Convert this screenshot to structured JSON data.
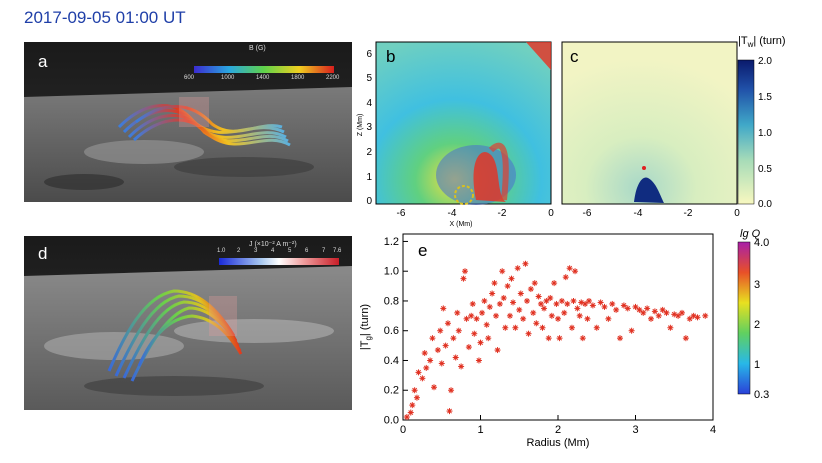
{
  "header": {
    "title": "2017-09-05 01:00 UT"
  },
  "panel_a": {
    "label": "a",
    "colorbar": {
      "title": "B (G)",
      "ticks": [
        "600",
        "1000",
        "1400",
        "1800",
        "2200"
      ]
    }
  },
  "panel_b": {
    "label": "b"
  },
  "panel_c": {
    "label": "c"
  },
  "panel_d": {
    "label": "d",
    "colorbar": {
      "title": "J (×10⁻² A m⁻²)",
      "ticks": [
        "1.0",
        "2",
        "3",
        "4",
        "5",
        "6",
        "7",
        "7.6"
      ]
    }
  },
  "panel_e": {
    "label": "e"
  },
  "colorbar_tw": {
    "title_sym": "|T",
    "title_sub": "w",
    "title_end": "| (turn)",
    "ticks": [
      "2.0",
      "1.5",
      "1.0",
      "0.5",
      "0.0"
    ]
  },
  "colorbar_q": {
    "title": "lg Q",
    "ticks": [
      "4.0",
      "3",
      "2",
      "1",
      "0.3"
    ]
  },
  "map_axes": {
    "b_xticks": [
      "-6",
      "-4",
      "-2",
      "0"
    ],
    "c_xticks": [
      "-6",
      "-4",
      "-2",
      "0"
    ],
    "yticks": [
      "6",
      "5",
      "4",
      "3",
      "2",
      "1",
      "0"
    ],
    "xlabel": "X (Mm)",
    "ylabel": "Z (Mm)"
  },
  "chart_data": {
    "type": "scatter",
    "xlabel": "Radius (Mm)",
    "ylabel_sym": "|T",
    "ylabel_sub": "g",
    "ylabel_end": "| (turn)",
    "xlim": [
      0,
      4
    ],
    "ylim": [
      0,
      1.25
    ],
    "xticks": [
      "0",
      "1",
      "2",
      "3",
      "4"
    ],
    "yticks": [
      "0.0",
      "0.2",
      "0.4",
      "0.6",
      "0.8",
      "1.0",
      "1.2"
    ],
    "marker": "asterisk",
    "color": "#e03020",
    "points": [
      [
        0.05,
        0.02
      ],
      [
        0.1,
        0.05
      ],
      [
        0.12,
        0.1
      ],
      [
        0.15,
        0.2
      ],
      [
        0.18,
        0.15
      ],
      [
        0.2,
        0.32
      ],
      [
        0.25,
        0.28
      ],
      [
        0.28,
        0.45
      ],
      [
        0.3,
        0.35
      ],
      [
        0.35,
        0.4
      ],
      [
        0.38,
        0.55
      ],
      [
        0.4,
        0.22
      ],
      [
        0.45,
        0.47
      ],
      [
        0.48,
        0.6
      ],
      [
        0.5,
        0.38
      ],
      [
        0.52,
        0.75
      ],
      [
        0.55,
        0.5
      ],
      [
        0.58,
        0.65
      ],
      [
        0.6,
        0.06
      ],
      [
        0.62,
        0.2
      ],
      [
        0.65,
        0.55
      ],
      [
        0.68,
        0.42
      ],
      [
        0.7,
        0.72
      ],
      [
        0.72,
        0.6
      ],
      [
        0.75,
        0.36
      ],
      [
        0.78,
        0.95
      ],
      [
        0.8,
        1.0
      ],
      [
        0.82,
        0.68
      ],
      [
        0.85,
        0.49
      ],
      [
        0.88,
        0.7
      ],
      [
        0.9,
        0.78
      ],
      [
        0.92,
        0.58
      ],
      [
        0.95,
        0.68
      ],
      [
        0.98,
        0.4
      ],
      [
        1.0,
        0.52
      ],
      [
        1.02,
        0.72
      ],
      [
        1.05,
        0.8
      ],
      [
        1.08,
        0.64
      ],
      [
        1.1,
        0.55
      ],
      [
        1.12,
        0.76
      ],
      [
        1.15,
        0.85
      ],
      [
        1.18,
        0.92
      ],
      [
        1.2,
        0.7
      ],
      [
        1.22,
        0.47
      ],
      [
        1.25,
        0.78
      ],
      [
        1.28,
        1.0
      ],
      [
        1.3,
        0.82
      ],
      [
        1.32,
        0.62
      ],
      [
        1.35,
        0.9
      ],
      [
        1.38,
        0.7
      ],
      [
        1.4,
        0.95
      ],
      [
        1.42,
        0.79
      ],
      [
        1.45,
        0.62
      ],
      [
        1.48,
        1.02
      ],
      [
        1.5,
        0.74
      ],
      [
        1.52,
        0.85
      ],
      [
        1.55,
        0.68
      ],
      [
        1.58,
        1.05
      ],
      [
        1.6,
        0.8
      ],
      [
        1.62,
        0.58
      ],
      [
        1.65,
        0.88
      ],
      [
        1.68,
        0.72
      ],
      [
        1.7,
        0.92
      ],
      [
        1.72,
        0.65
      ],
      [
        1.75,
        0.83
      ],
      [
        1.78,
        0.78
      ],
      [
        1.8,
        0.62
      ],
      [
        1.82,
        0.75
      ],
      [
        1.85,
        0.8
      ],
      [
        1.88,
        0.55
      ],
      [
        1.9,
        0.82
      ],
      [
        1.92,
        0.7
      ],
      [
        1.95,
        0.92
      ],
      [
        1.98,
        0.78
      ],
      [
        2.0,
        0.68
      ],
      [
        2.02,
        0.55
      ],
      [
        2.05,
        0.8
      ],
      [
        2.08,
        0.72
      ],
      [
        2.1,
        0.96
      ],
      [
        2.12,
        0.78
      ],
      [
        2.15,
        1.02
      ],
      [
        2.18,
        0.62
      ],
      [
        2.2,
        0.8
      ],
      [
        2.22,
        1.0
      ],
      [
        2.25,
        0.75
      ],
      [
        2.28,
        0.7
      ],
      [
        2.3,
        0.79
      ],
      [
        2.32,
        0.55
      ],
      [
        2.35,
        0.78
      ],
      [
        2.38,
        0.68
      ],
      [
        2.4,
        0.8
      ],
      [
        2.45,
        0.77
      ],
      [
        2.5,
        0.62
      ],
      [
        2.55,
        0.79
      ],
      [
        2.6,
        0.76
      ],
      [
        2.65,
        0.68
      ],
      [
        2.7,
        0.78
      ],
      [
        2.75,
        0.74
      ],
      [
        2.8,
        0.55
      ],
      [
        2.85,
        0.77
      ],
      [
        2.9,
        0.75
      ],
      [
        2.95,
        0.6
      ],
      [
        3.0,
        0.76
      ],
      [
        3.05,
        0.74
      ],
      [
        3.1,
        0.72
      ],
      [
        3.15,
        0.75
      ],
      [
        3.2,
        0.68
      ],
      [
        3.25,
        0.73
      ],
      [
        3.3,
        0.7
      ],
      [
        3.35,
        0.74
      ],
      [
        3.4,
        0.72
      ],
      [
        3.45,
        0.62
      ],
      [
        3.5,
        0.71
      ],
      [
        3.55,
        0.7
      ],
      [
        3.6,
        0.72
      ],
      [
        3.65,
        0.55
      ],
      [
        3.7,
        0.68
      ],
      [
        3.75,
        0.7
      ],
      [
        3.8,
        0.69
      ],
      [
        3.9,
        0.7
      ]
    ]
  }
}
